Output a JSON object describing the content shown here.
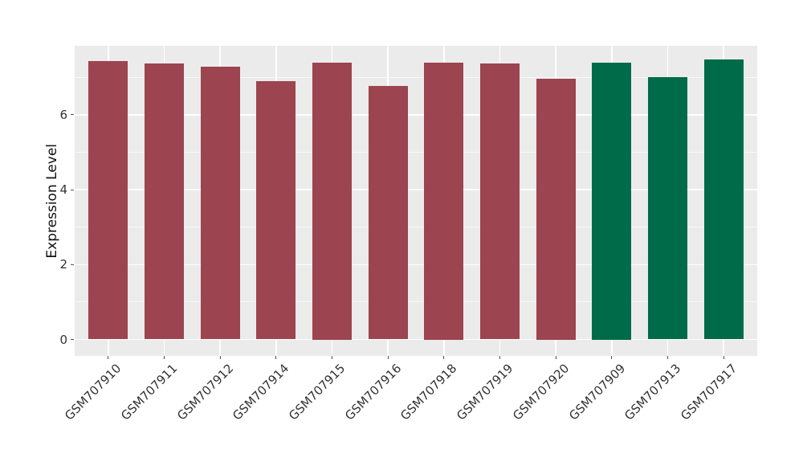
{
  "chart_data": {
    "type": "bar",
    "title": "",
    "xlabel": "",
    "ylabel": "Expression Level",
    "categories": [
      "GSM707910",
      "GSM707911",
      "GSM707912",
      "GSM707914",
      "GSM707915",
      "GSM707916",
      "GSM707918",
      "GSM707919",
      "GSM707920",
      "GSM707909",
      "GSM707913",
      "GSM707917"
    ],
    "values": [
      7.44,
      7.37,
      7.28,
      6.9,
      7.39,
      6.77,
      7.39,
      7.37,
      6.96,
      7.4,
      7.01,
      7.48
    ],
    "bar_colors": [
      "#9C4450",
      "#9C4450",
      "#9C4450",
      "#9C4450",
      "#9C4450",
      "#9C4450",
      "#9C4450",
      "#9C4450",
      "#9C4450",
      "#006B48",
      "#006B48",
      "#006B48"
    ],
    "groups": {
      "group_1": {
        "color": "#9C4450",
        "members": [
          "GSM707910",
          "GSM707911",
          "GSM707912",
          "GSM707914",
          "GSM707915",
          "GSM707916",
          "GSM707918",
          "GSM707919",
          "GSM707920"
        ]
      },
      "group_2": {
        "color": "#006B48",
        "members": [
          "GSM707909",
          "GSM707913",
          "GSM707917"
        ]
      }
    },
    "yticks": [
      0,
      2,
      4,
      6
    ],
    "yticks_minor": [
      1,
      3,
      5,
      7
    ],
    "ylim": [
      -0.44,
      7.84
    ],
    "x_tick_label_rotation_deg": 45,
    "grid": true,
    "legend": false,
    "colors": {
      "panel_bg": "#EBEBEB",
      "grid": "#FFFFFF",
      "tick_mark": "#555555",
      "tick_text": "#333333"
    }
  }
}
